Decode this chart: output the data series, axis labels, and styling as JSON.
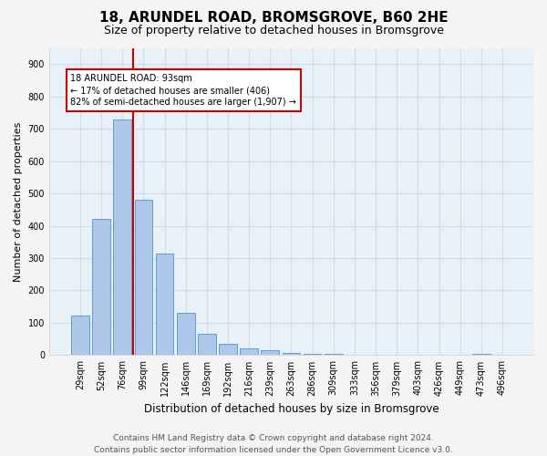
{
  "title": "18, ARUNDEL ROAD, BROMSGROVE, B60 2HE",
  "subtitle": "Size of property relative to detached houses in Bromsgrove",
  "xlabel": "Distribution of detached houses by size in Bromsgrove",
  "ylabel": "Number of detached properties",
  "footer_line1": "Contains HM Land Registry data © Crown copyright and database right 2024.",
  "footer_line2": "Contains public sector information licensed under the Open Government Licence v3.0.",
  "categories": [
    "29sqm",
    "52sqm",
    "76sqm",
    "99sqm",
    "122sqm",
    "146sqm",
    "169sqm",
    "192sqm",
    "216sqm",
    "239sqm",
    "263sqm",
    "286sqm",
    "309sqm",
    "333sqm",
    "356sqm",
    "379sqm",
    "403sqm",
    "426sqm",
    "449sqm",
    "473sqm",
    "496sqm"
  ],
  "values": [
    122,
    420,
    730,
    480,
    315,
    130,
    65,
    35,
    20,
    15,
    8,
    5,
    3,
    2,
    1,
    0,
    0,
    0,
    0,
    3,
    0
  ],
  "bar_color": "#aec6e8",
  "bar_edge_color": "#5a9fd4",
  "vline_color": "#cc0000",
  "vline_x_index": 2.5,
  "annotation_text": "18 ARUNDEL ROAD: 93sqm\n← 17% of detached houses are smaller (406)\n82% of semi-detached houses are larger (1,907) →",
  "annotation_box_color": "#cc0000",
  "annotation_text_color": "#000000",
  "annotation_bg": "#ffffff",
  "ylim": [
    0,
    950
  ],
  "yticks": [
    0,
    100,
    200,
    300,
    400,
    500,
    600,
    700,
    800,
    900
  ],
  "grid_color": "#d0dce8",
  "bg_color": "#e8f0f8",
  "fig_bg_color": "#f4f4f4",
  "title_fontsize": 11,
  "subtitle_fontsize": 9,
  "axis_label_fontsize": 8.5,
  "tick_fontsize": 7,
  "footer_fontsize": 6.5,
  "ylabel_fontsize": 8
}
